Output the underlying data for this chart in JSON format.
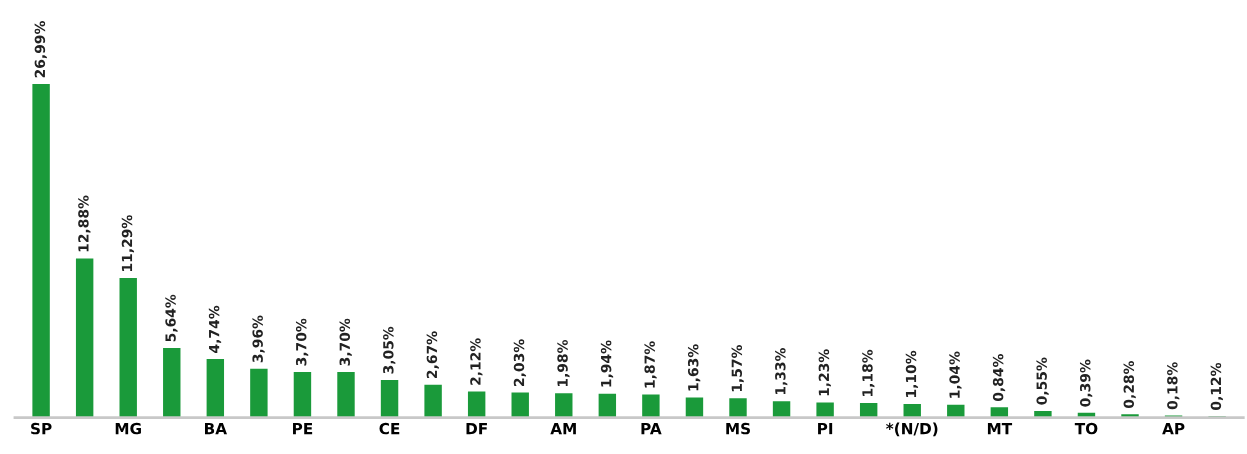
{
  "chart_data": {
    "type": "bar",
    "categories": [
      "SP",
      null,
      "MG",
      null,
      "BA",
      null,
      "PE",
      null,
      "CE",
      null,
      "DF",
      null,
      "AM",
      null,
      "PA",
      null,
      "MS",
      null,
      "PI",
      null,
      "*(N/D)",
      null,
      "MT",
      null,
      "TO",
      null,
      "AP",
      null
    ],
    "values": [
      26.99,
      12.88,
      11.29,
      5.64,
      4.74,
      3.96,
      3.7,
      3.7,
      3.05,
      2.67,
      2.12,
      2.03,
      1.98,
      1.94,
      1.87,
      1.63,
      1.57,
      1.33,
      1.23,
      1.18,
      1.1,
      1.04,
      0.84,
      0.55,
      0.39,
      0.28,
      0.18,
      0.12
    ],
    "value_labels": [
      "26,99%",
      "12,88%",
      "11,29%",
      "5,64%",
      "4,74%",
      "3,96%",
      "3,70%",
      "3,70%",
      "3,05%",
      "2,67%",
      "2,12%",
      "2,03%",
      "1,98%",
      "1,94%",
      "1,87%",
      "1,63%",
      "1,57%",
      "1,33%",
      "1,23%",
      "1,18%",
      "1,10%",
      "1,04%",
      "0,84%",
      "0,55%",
      "0,39%",
      "0,28%",
      "0,18%",
      "0,12%"
    ],
    "color": "#1a9a3a",
    "tick_labels": "x",
    "grid": false,
    "legend": false
  }
}
